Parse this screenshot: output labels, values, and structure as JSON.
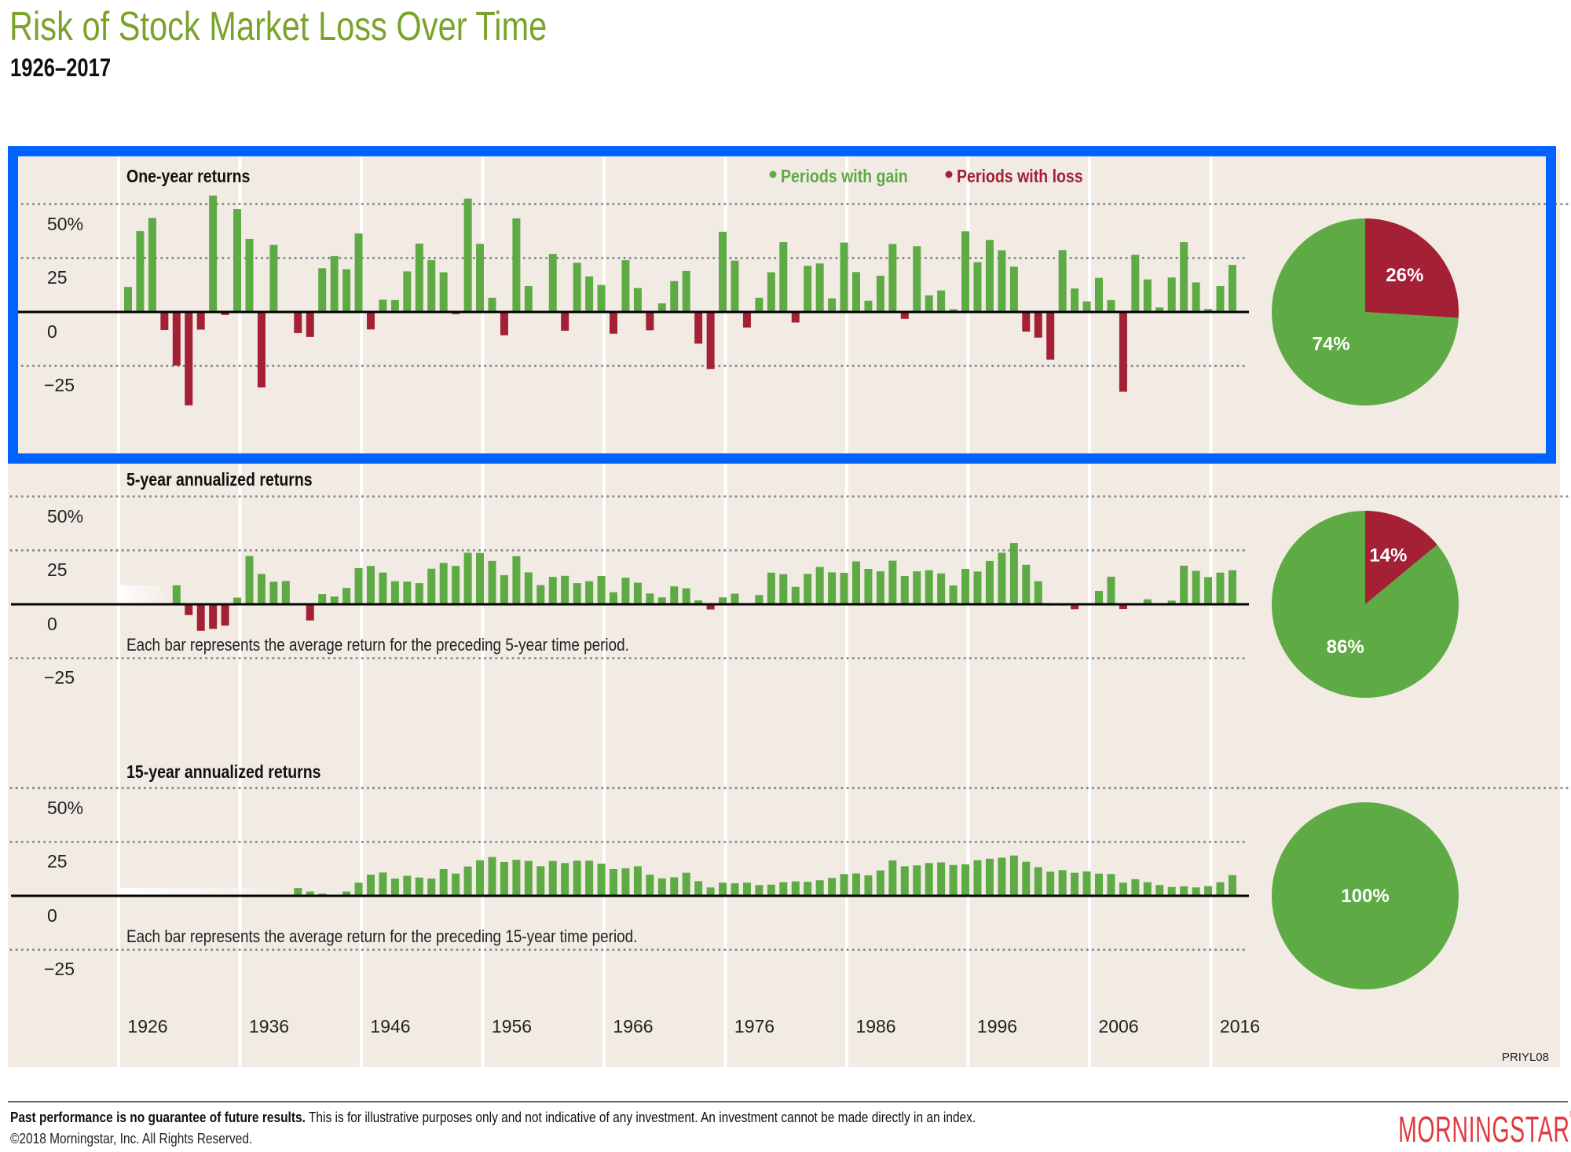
{
  "header": {
    "title": "Risk of Stock Market Loss Over Time",
    "subtitle": "1926–2017"
  },
  "legend": {
    "gain_label": "Periods with gain",
    "loss_label": "Periods with loss",
    "bullet": "•"
  },
  "colors": {
    "gain": "#5eaa44",
    "loss": "#a32035",
    "title": "#7aa32a",
    "highlight": "#0062ff",
    "panel": "#f1ebe4",
    "grid": "#7f8c8c",
    "logo": "#e03a3e"
  },
  "chart_data": [
    {
      "type": "bar",
      "title": "One-year returns",
      "note": "",
      "start_year": 1926,
      "ylim": [
        -50,
        60
      ],
      "yticks": [
        {
          "value": 50,
          "label": "50%"
        },
        {
          "value": 25,
          "label": "25"
        },
        {
          "value": 0,
          "label": "0"
        },
        {
          "value": -25,
          "label": "−25"
        }
      ],
      "values": [
        11.6,
        37.5,
        43.6,
        -8.4,
        -24.9,
        -43.3,
        -8.2,
        54.0,
        -1.4,
        47.7,
        33.9,
        -35.0,
        31.1,
        -0.4,
        -9.8,
        -11.6,
        20.3,
        25.9,
        19.8,
        36.4,
        -8.1,
        5.7,
        5.5,
        18.8,
        31.7,
        24.0,
        18.4,
        -1.0,
        52.6,
        31.6,
        6.6,
        -10.8,
        43.4,
        12.0,
        0.5,
        26.9,
        -8.7,
        22.8,
        16.5,
        12.5,
        -10.1,
        24.0,
        11.1,
        -8.5,
        4.0,
        14.3,
        19.0,
        -14.7,
        -26.5,
        37.2,
        23.8,
        -7.2,
        6.6,
        18.4,
        32.4,
        -4.9,
        21.4,
        22.5,
        6.3,
        32.2,
        18.5,
        5.2,
        16.8,
        31.5,
        -3.2,
        30.5,
        7.7,
        10.0,
        1.3,
        37.4,
        23.1,
        33.4,
        28.6,
        21.0,
        -9.1,
        -11.9,
        -22.1,
        28.7,
        10.9,
        4.9,
        15.8,
        5.5,
        -37.0,
        26.5,
        15.1,
        2.1,
        16.0,
        32.4,
        13.7,
        1.4,
        12.0,
        21.8
      ],
      "pie": {
        "gain_pct": 74,
        "loss_pct": 26,
        "gain_label": "74%",
        "loss_label": "26%"
      }
    },
    {
      "type": "bar",
      "title": "5-year annualized returns",
      "note": "Each bar represents the average return for the preceding 5-year time period.",
      "start_year": 1930,
      "ylim": [
        -50,
        60
      ],
      "yticks": [
        {
          "value": 50,
          "label": "50%"
        },
        {
          "value": 25,
          "label": "25"
        },
        {
          "value": 0,
          "label": "0"
        },
        {
          "value": -25,
          "label": "−25"
        }
      ],
      "values": [
        8.8,
        -5.0,
        -12.3,
        -11.4,
        -9.9,
        3.1,
        22.4,
        14.1,
        10.5,
        10.8,
        0.5,
        -7.5,
        4.7,
        3.6,
        7.6,
        16.8,
        17.8,
        14.7,
        10.7,
        10.5,
        9.8,
        16.5,
        19.2,
        17.8,
        23.9,
        23.8,
        20.1,
        13.5,
        22.3,
        14.8,
        8.9,
        12.7,
        13.2,
        9.8,
        10.7,
        13.1,
        5.6,
        12.3,
        10.0,
        5.0,
        3.2,
        8.3,
        7.4,
        1.8,
        -2.4,
        3.2,
        4.9,
        -0.2,
        4.3,
        14.7,
        14.0,
        8.1,
        14.1,
        17.3,
        14.8,
        14.6,
        19.9,
        16.4,
        15.3,
        20.2,
        13.1,
        15.3,
        15.8,
        14.3,
        8.7,
        16.4,
        15.2,
        20.1,
        23.9,
        28.4,
        18.3,
        10.7,
        -0.6,
        -0.6,
        -2.3,
        0.5,
        6.2,
        12.8,
        -2.2,
        0.4,
        2.3,
        -0.3,
        1.7,
        17.9,
        15.5,
        12.6,
        14.7,
        15.8
      ],
      "pie": {
        "gain_pct": 86,
        "loss_pct": 14,
        "gain_label": "86%",
        "loss_label": "14%"
      }
    },
    {
      "type": "bar",
      "title": "15-year annualized returns",
      "note": "Each bar represents the average return for the preceding 15-year time period.",
      "start_year": 1940,
      "ylim": [
        -50,
        60
      ],
      "yticks": [
        {
          "value": 50,
          "label": "50%"
        },
        {
          "value": 25,
          "label": "25"
        },
        {
          "value": 0,
          "label": "0"
        },
        {
          "value": -25,
          "label": "−25"
        }
      ],
      "values": [
        3.6,
        2.0,
        1.0,
        0.2,
        2.0,
        6.1,
        9.8,
        10.8,
        8.0,
        9.3,
        8.5,
        8.0,
        12.4,
        10.3,
        13.6,
        16.5,
        18.0,
        15.7,
        16.7,
        16.2,
        13.7,
        16.2,
        15.2,
        16.3,
        16.3,
        14.9,
        12.4,
        12.8,
        13.7,
        9.8,
        8.1,
        8.6,
        10.7,
        6.8,
        3.9,
        6.1,
        5.8,
        6.1,
        5.0,
        5.2,
        6.3,
        6.7,
        6.5,
        7.2,
        8.3,
        10.1,
        10.4,
        9.5,
        11.8,
        16.4,
        13.7,
        14.1,
        15.2,
        15.5,
        14.3,
        14.6,
        16.5,
        17.2,
        17.7,
        18.7,
        15.8,
        13.3,
        11.2,
        11.9,
        10.7,
        11.3,
        10.3,
        10.1,
        6.1,
        7.7,
        6.3,
        5.0,
        4.1,
        4.4,
        3.9,
        4.5,
        6.3,
        9.6
      ],
      "pie": {
        "gain_pct": 100,
        "loss_pct": 0,
        "gain_label": "100%",
        "loss_label": ""
      }
    }
  ],
  "xaxis": {
    "first_year": 1926,
    "last_year": 2017,
    "ticks": [
      "1926",
      "1936",
      "1946",
      "1956",
      "1966",
      "1976",
      "1986",
      "1996",
      "2006",
      "2016"
    ]
  },
  "code": "PRIYL08",
  "footer": {
    "disclaimer_bold": "Past performance is no guarantee of future results.",
    "disclaimer": " This is for illustrative purposes only and not indicative of any investment. An investment cannot be made directly in an index.",
    "copyright": "©2018 Morningstar, Inc. All Rights Reserved."
  },
  "logo": {
    "text": "MORNINGSTAR",
    "mark": "®"
  }
}
